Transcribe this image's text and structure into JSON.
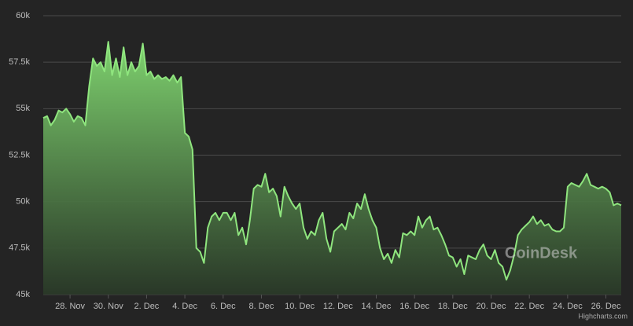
{
  "chart_data": {
    "type": "area",
    "x": [
      26.6,
      26.8,
      27.0,
      27.2,
      27.4,
      27.6,
      27.8,
      28.0,
      28.2,
      28.4,
      28.6,
      28.8,
      29.0,
      29.2,
      29.4,
      29.6,
      29.8,
      30.0,
      30.2,
      30.4,
      30.6,
      30.8,
      31.0,
      31.2,
      31.4,
      31.6,
      31.8,
      32.0,
      32.2,
      32.4,
      32.6,
      32.8,
      33.0,
      33.2,
      33.4,
      33.6,
      33.8,
      34.0,
      34.2,
      34.4,
      34.6,
      34.8,
      35.0,
      35.2,
      35.4,
      35.6,
      35.8,
      36.0,
      36.2,
      36.4,
      36.6,
      36.8,
      37.0,
      37.2,
      37.4,
      37.6,
      37.8,
      38.0,
      38.2,
      38.4,
      38.6,
      38.8,
      39.0,
      39.2,
      39.4,
      39.6,
      39.8,
      40.0,
      40.2,
      40.4,
      40.6,
      40.8,
      41.0,
      41.2,
      41.4,
      41.6,
      41.8,
      42.0,
      42.2,
      42.4,
      42.6,
      42.8,
      43.0,
      43.2,
      43.4,
      43.6,
      43.8,
      44.0,
      44.2,
      44.4,
      44.6,
      44.8,
      45.0,
      45.2,
      45.4,
      45.6,
      45.8,
      46.0,
      46.2,
      46.4,
      46.6,
      46.8,
      47.0,
      47.2,
      47.4,
      47.6,
      47.8,
      48.0,
      48.2,
      48.4,
      48.6,
      48.8,
      49.0,
      49.2,
      49.4,
      49.6,
      49.8,
      50.0,
      50.2,
      50.4,
      50.6,
      50.8,
      51.0,
      51.2,
      51.4,
      51.6,
      51.8,
      52.0,
      52.2,
      52.4,
      52.6,
      52.8,
      53.0,
      53.2,
      53.4,
      53.6,
      53.8,
      54.0,
      54.2,
      54.4,
      54.6,
      54.8,
      55.0,
      55.2,
      55.4,
      55.6,
      55.8,
      56.0,
      56.2,
      56.4,
      56.6,
      56.8
    ],
    "values": [
      54500,
      54600,
      54100,
      54400,
      54900,
      54800,
      55000,
      54700,
      54300,
      54600,
      54500,
      54100,
      56200,
      57700,
      57300,
      57500,
      57000,
      58600,
      56800,
      57700,
      56700,
      58300,
      56800,
      57500,
      57000,
      57300,
      58500,
      56800,
      57000,
      56600,
      56800,
      56600,
      56700,
      56500,
      56800,
      56400,
      56700,
      53700,
      53500,
      52800,
      47500,
      47300,
      46700,
      48600,
      49200,
      49400,
      49000,
      49400,
      49400,
      49000,
      49400,
      48200,
      48600,
      47700,
      49000,
      50700,
      50900,
      50800,
      51500,
      50500,
      50700,
      50300,
      49200,
      50800,
      50300,
      49900,
      49600,
      49900,
      48600,
      48000,
      48400,
      48200,
      49000,
      49400,
      48000,
      47300,
      48400,
      48600,
      48800,
      48500,
      49400,
      49100,
      49900,
      49600,
      50400,
      49600,
      49000,
      48600,
      47500,
      46900,
      47200,
      46700,
      47400,
      47000,
      48300,
      48200,
      48400,
      48200,
      49200,
      48600,
      49000,
      49200,
      48500,
      48600,
      48200,
      47700,
      47100,
      47000,
      46500,
      46900,
      46100,
      47100,
      47000,
      46900,
      47400,
      47700,
      47100,
      46900,
      47400,
      46700,
      46500,
      45800,
      46300,
      47100,
      48200,
      48500,
      48700,
      48900,
      49200,
      48800,
      49000,
      48700,
      48800,
      48500,
      48400,
      48400,
      48600,
      50800,
      51000,
      50900,
      50800,
      51100,
      51500,
      50900,
      50800,
      50700,
      50800,
      50700,
      50500,
      49800,
      49900,
      49800
    ],
    "color": "#8fe57e",
    "xlim": [
      26.6,
      56.8
    ],
    "xticks": [
      {
        "value": 28,
        "label": "28. Nov"
      },
      {
        "value": 30,
        "label": "30. Nov"
      },
      {
        "value": 32,
        "label": "2. Dec"
      },
      {
        "value": 34,
        "label": "4. Dec"
      },
      {
        "value": 36,
        "label": "6. Dec"
      },
      {
        "value": 38,
        "label": "8. Dec"
      },
      {
        "value": 40,
        "label": "10. Dec"
      },
      {
        "value": 42,
        "label": "12. Dec"
      },
      {
        "value": 44,
        "label": "14. Dec"
      },
      {
        "value": 46,
        "label": "16. Dec"
      },
      {
        "value": 48,
        "label": "18. Dec"
      },
      {
        "value": 50,
        "label": "20. Dec"
      },
      {
        "value": 52,
        "label": "22. Dec"
      },
      {
        "value": 54,
        "label": "24. Dec"
      },
      {
        "value": 56,
        "label": "26. Dec"
      }
    ],
    "ylim": [
      45000,
      60000
    ],
    "yticks": [
      {
        "value": 45000,
        "label": "45k"
      },
      {
        "value": 47500,
        "label": "47.5k"
      },
      {
        "value": 50000,
        "label": "50k"
      },
      {
        "value": 52500,
        "label": "52.5k"
      },
      {
        "value": 55000,
        "label": "55k"
      },
      {
        "value": 57500,
        "label": "57.5k"
      },
      {
        "value": 60000,
        "label": "60k"
      }
    ],
    "grid": true,
    "watermark": "CoinDesk",
    "credits": "Highcharts.com"
  }
}
